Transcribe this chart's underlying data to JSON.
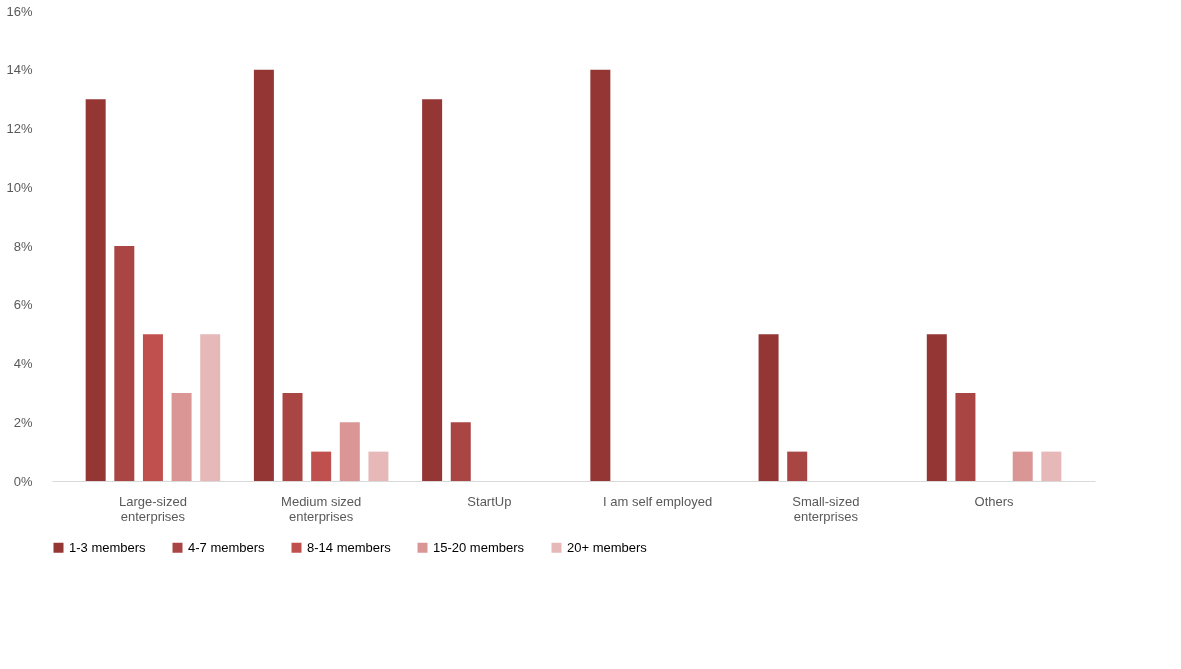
{
  "chart_data": {
    "type": "bar",
    "categories": [
      "Large-sized enterprises",
      "Medium sized enterprises",
      "StartUp",
      "I am self employed",
      "Small-sized enterprises",
      "Others"
    ],
    "series": [
      {
        "name": "1-3 members",
        "color": "#943634",
        "values": [
          13,
          14,
          13,
          14,
          5,
          5
        ]
      },
      {
        "name": "4-7 members",
        "color": "#a94543",
        "values": [
          8,
          3,
          2,
          0,
          1,
          3
        ]
      },
      {
        "name": "8-14 members",
        "color": "#c0504d",
        "values": [
          5,
          1,
          0,
          0,
          0,
          0
        ]
      },
      {
        "name": "15-20 members",
        "color": "#d99694",
        "values": [
          3,
          2,
          0,
          0,
          0,
          1
        ]
      },
      {
        "name": "20+ members",
        "color": "#e6b9b8",
        "values": [
          5,
          1,
          0,
          0,
          0,
          1
        ]
      }
    ],
    "ylim": [
      0,
      16
    ],
    "yticks": [
      {
        "value": 0,
        "label": "0%"
      },
      {
        "value": 2,
        "label": "2%"
      },
      {
        "value": 4,
        "label": "4%"
      },
      {
        "value": 6,
        "label": "6%"
      },
      {
        "value": 8,
        "label": "8%"
      },
      {
        "value": 10,
        "label": "10%"
      },
      {
        "value": 12,
        "label": "12%"
      },
      {
        "value": 14,
        "label": "14%"
      },
      {
        "value": 16,
        "label": "16%"
      }
    ],
    "grid": false,
    "legend": "bottom"
  }
}
